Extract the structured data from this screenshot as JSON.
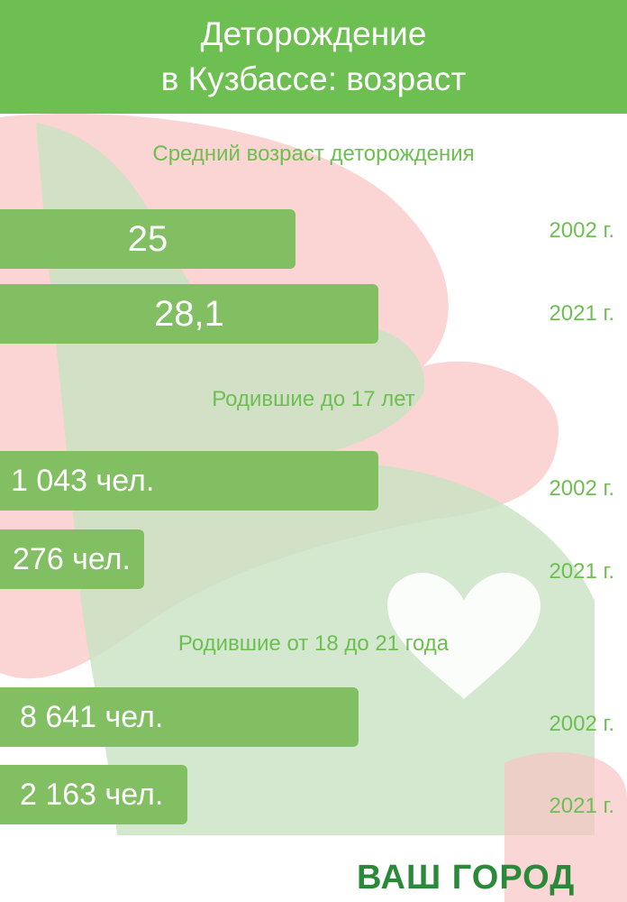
{
  "header": {
    "title_line1": "Деторождение",
    "title_line2": "в Кузбассе: возраст"
  },
  "chart_data": [
    {
      "type": "bar",
      "title": "Средний возраст деторождения",
      "categories": [
        "2002 г.",
        "2021 г."
      ],
      "values": [
        25,
        28.1
      ],
      "value_labels": [
        "25",
        "28,1"
      ]
    },
    {
      "type": "bar",
      "title": "Родившие до 17 лет",
      "categories": [
        "2002 г.",
        "2021 г."
      ],
      "values": [
        1043,
        276
      ],
      "value_labels": [
        "1 043 чел.",
        "276 чел."
      ]
    },
    {
      "type": "bar",
      "title": "Родившие  от 18 до 21 года",
      "categories": [
        "2002 г.",
        "2021 г."
      ],
      "values": [
        8641,
        2163
      ],
      "value_labels": [
        "8 641 чел.",
        "2 163 чел."
      ]
    }
  ],
  "colors": {
    "header": "#6dbf52",
    "bar": "#82bf63",
    "text_accent": "#6dbf52",
    "logo": "#2b8a3a"
  },
  "logo": {
    "text": "ВАШ ГОРОД"
  }
}
